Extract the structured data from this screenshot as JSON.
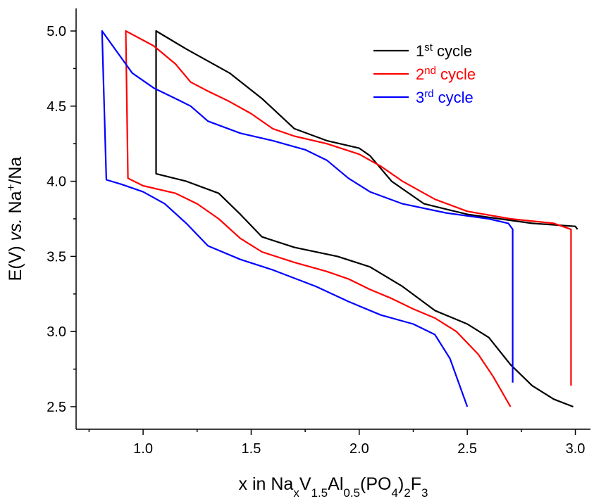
{
  "chart_data": {
    "type": "line",
    "x_label": [
      {
        "text": "x in Na"
      },
      {
        "text": "x",
        "sub": true
      },
      {
        "text": "V"
      },
      {
        "text": "1.5",
        "sub": true
      },
      {
        "text": "Al"
      },
      {
        "text": "0.5",
        "sub": true
      },
      {
        "text": "(PO"
      },
      {
        "text": "4",
        "sub": true
      },
      {
        "text": ")"
      },
      {
        "text": "2",
        "sub": true
      },
      {
        "text": "F"
      },
      {
        "text": "3",
        "sub": true
      }
    ],
    "y_label": [
      {
        "text": "E(V) "
      },
      {
        "text": "vs.",
        "italic": true
      },
      {
        "text": " Na"
      },
      {
        "text": "+",
        "sup": true
      },
      {
        "text": "/Na"
      }
    ],
    "xlim": [
      0.69,
      3.07
    ],
    "ylim": [
      2.35,
      5.15
    ],
    "xticks": [
      {
        "value": 1,
        "label": "1.0"
      },
      1.5,
      {
        "value": 2,
        "label": "2.0"
      },
      2.5,
      {
        "value": 3,
        "label": "3.0"
      }
    ],
    "yticks": [
      2.5,
      {
        "value": 3,
        "label": "3.0"
      },
      3.5,
      {
        "value": 4,
        "label": "4.0"
      },
      4.5,
      {
        "value": 5,
        "label": "5.0"
      }
    ],
    "xminorticks": [
      0.75,
      1.25,
      1.75,
      2.25,
      2.75
    ],
    "yminorticks": [
      2.75,
      3.25,
      3.75,
      4.25,
      4.75
    ],
    "legend": "upper right",
    "series": [
      {
        "name": [
          {
            "text": "1"
          },
          {
            "text": "st",
            "sup": true
          },
          {
            "text": " cycle"
          }
        ],
        "color": "#000000",
        "x": [
          3.01,
          3.0,
          2.8,
          2.5,
          2.3,
          2.15,
          2.05,
          2.0,
          1.85,
          1.7,
          1.55,
          1.4,
          1.2,
          1.06,
          1.06,
          1.2,
          1.35,
          1.45,
          1.55,
          1.7,
          1.9,
          2.05,
          2.2,
          2.35,
          2.5,
          2.6,
          2.7,
          2.8,
          2.9,
          2.99
        ],
        "values": [
          3.68,
          3.7,
          3.72,
          3.78,
          3.85,
          4.0,
          4.17,
          4.22,
          4.27,
          4.35,
          4.55,
          4.72,
          4.88,
          5.0,
          4.05,
          4.0,
          3.92,
          3.78,
          3.63,
          3.56,
          3.5,
          3.43,
          3.3,
          3.14,
          3.05,
          2.96,
          2.78,
          2.64,
          2.55,
          2.5
        ]
      },
      {
        "name": [
          {
            "text": "2"
          },
          {
            "text": "nd",
            "sup": true
          },
          {
            "text": " cycle"
          }
        ],
        "color": "#ff0000",
        "x": [
          2.98,
          2.98,
          2.9,
          2.7,
          2.5,
          2.35,
          2.2,
          2.1,
          2.0,
          1.85,
          1.7,
          1.6,
          1.5,
          1.4,
          1.3,
          1.22,
          1.15,
          1.05,
          0.92,
          0.93,
          1.0,
          1.15,
          1.25,
          1.35,
          1.45,
          1.55,
          1.7,
          1.85,
          1.95,
          2.05,
          2.15,
          2.25,
          2.35,
          2.45,
          2.55,
          2.62,
          2.7
        ],
        "values": [
          2.64,
          3.68,
          3.72,
          3.75,
          3.8,
          3.88,
          4.0,
          4.1,
          4.18,
          4.25,
          4.3,
          4.35,
          4.45,
          4.53,
          4.6,
          4.66,
          4.78,
          4.9,
          5.0,
          4.02,
          3.97,
          3.92,
          3.85,
          3.75,
          3.62,
          3.53,
          3.46,
          3.4,
          3.35,
          3.28,
          3.22,
          3.15,
          3.09,
          3.0,
          2.85,
          2.7,
          2.5
        ]
      },
      {
        "name": [
          {
            "text": "3"
          },
          {
            "text": "rd",
            "sup": true
          },
          {
            "text": " cycle"
          }
        ],
        "color": "#0000ff",
        "x": [
          2.71,
          2.71,
          2.69,
          2.6,
          2.4,
          2.2,
          2.05,
          1.95,
          1.85,
          1.75,
          1.6,
          1.45,
          1.3,
          1.22,
          1.15,
          1.05,
          0.95,
          0.86,
          0.81,
          0.83,
          0.9,
          1.0,
          1.1,
          1.2,
          1.3,
          1.45,
          1.6,
          1.8,
          1.95,
          2.1,
          2.25,
          2.35,
          2.42,
          2.5
        ],
        "values": [
          2.66,
          3.68,
          3.72,
          3.75,
          3.79,
          3.85,
          3.93,
          4.02,
          4.14,
          4.21,
          4.27,
          4.32,
          4.4,
          4.5,
          4.55,
          4.62,
          4.72,
          4.9,
          5.0,
          4.01,
          3.98,
          3.93,
          3.85,
          3.72,
          3.57,
          3.48,
          3.41,
          3.3,
          3.2,
          3.11,
          3.05,
          2.98,
          2.82,
          2.5
        ]
      }
    ]
  }
}
